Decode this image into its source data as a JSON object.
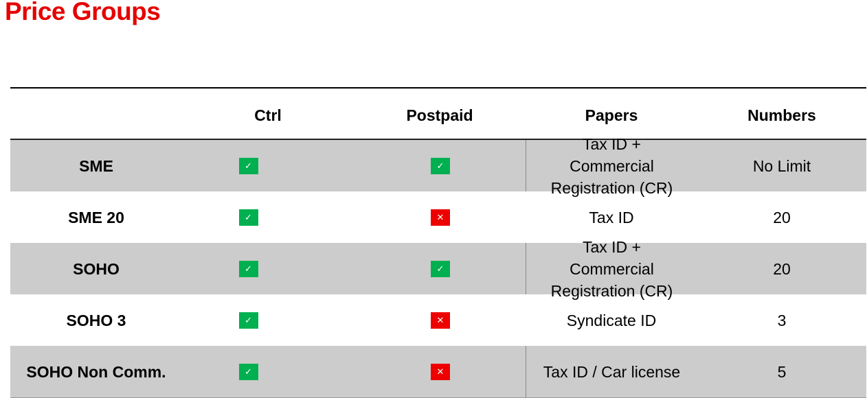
{
  "title": "Price Groups",
  "columns": [
    "",
    "Ctrl",
    "Postpaid",
    "Papers",
    "Numbers"
  ],
  "icons": {
    "yes": "check-icon",
    "no": "cross-icon"
  },
  "colors": {
    "title": "#e60000",
    "yes": "#00b050",
    "no": "#ee0000",
    "shaded_row": "#cccccc"
  },
  "rows": [
    {
      "name": "SME",
      "ctrl": true,
      "postpaid": true,
      "papers": "Tax ID + Commercial Registration (CR)",
      "numbers": "No Limit"
    },
    {
      "name": "SME 20",
      "ctrl": true,
      "postpaid": false,
      "papers": "Tax ID",
      "numbers": "20"
    },
    {
      "name": "SOHO",
      "ctrl": true,
      "postpaid": true,
      "papers": "Tax ID + Commercial Registration (CR)",
      "numbers": "20"
    },
    {
      "name": "SOHO 3",
      "ctrl": true,
      "postpaid": false,
      "papers": "Syndicate ID",
      "numbers": "3"
    },
    {
      "name": "SOHO Non Comm.",
      "ctrl": true,
      "postpaid": false,
      "papers": "Tax ID / Car license",
      "numbers": "5"
    }
  ]
}
